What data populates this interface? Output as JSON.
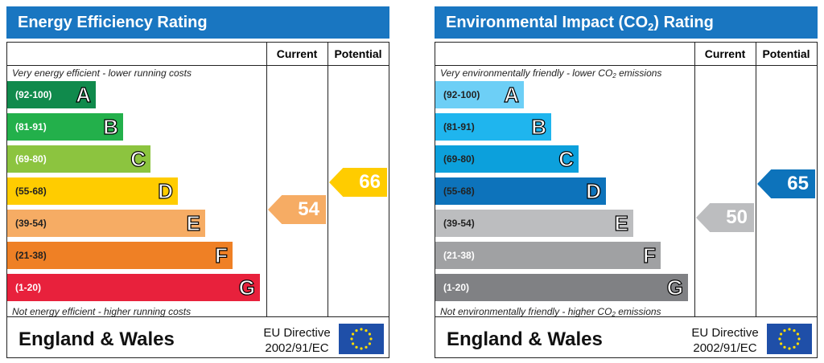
{
  "panels": [
    {
      "title": "Energy Efficiency Rating",
      "col_current": "Current",
      "col_potential": "Potential",
      "top_note": "Very energy efficient - lower running costs",
      "bottom_note": "Not energy efficient - higher running costs",
      "bands": [
        {
          "range": "(92-100)",
          "letter": "A",
          "color": "#108a4c"
        },
        {
          "range": "(81-91)",
          "letter": "B",
          "color": "#23b04b"
        },
        {
          "range": "(69-80)",
          "letter": "C",
          "color": "#8cc43f"
        },
        {
          "range": "(55-68)",
          "letter": "D",
          "color": "#ffcc00"
        },
        {
          "range": "(39-54)",
          "letter": "E",
          "color": "#f6ac64"
        },
        {
          "range": "(21-38)",
          "letter": "F",
          "color": "#ef8025"
        },
        {
          "range": "(1-20)",
          "letter": "G",
          "color": "#e8213c"
        }
      ],
      "current_value": "54",
      "current_color": "#f6ac64",
      "potential_value": "66",
      "potential_color": "#ffcc00",
      "country": "England & Wales",
      "directive_line1": "EU Directive",
      "directive_line2": "2002/91/EC"
    },
    {
      "title_before": "Environmental Impact (CO",
      "title_sub": "2",
      "title_after": ") Rating",
      "col_current": "Current",
      "col_potential": "Potential",
      "top_note_before": "Very environmentally friendly - lower CO",
      "top_note_sub": "2",
      "top_note_after": " emissions",
      "bottom_note_before": "Not environmentally friendly - higher CO",
      "bottom_note_sub": "2",
      "bottom_note_after": " emissions",
      "bands": [
        {
          "range": "(92-100)",
          "letter": "A",
          "color": "#6dcff6"
        },
        {
          "range": "(81-91)",
          "letter": "B",
          "color": "#1fb5ee"
        },
        {
          "range": "(69-80)",
          "letter": "C",
          "color": "#0ca0dc"
        },
        {
          "range": "(55-68)",
          "letter": "D",
          "color": "#0d73bb"
        },
        {
          "range": "(39-54)",
          "letter": "E",
          "color": "#bcbdbf"
        },
        {
          "range": "(21-38)",
          "letter": "F",
          "color": "#a0a1a3"
        },
        {
          "range": "(1-20)",
          "letter": "G",
          "color": "#808184"
        }
      ],
      "current_value": "50",
      "current_color": "#bcbdbf",
      "potential_value": "65",
      "potential_color": "#0d73bb",
      "country": "England & Wales",
      "directive_line1": "EU Directive",
      "directive_line2": "2002/91/EC"
    }
  ]
}
